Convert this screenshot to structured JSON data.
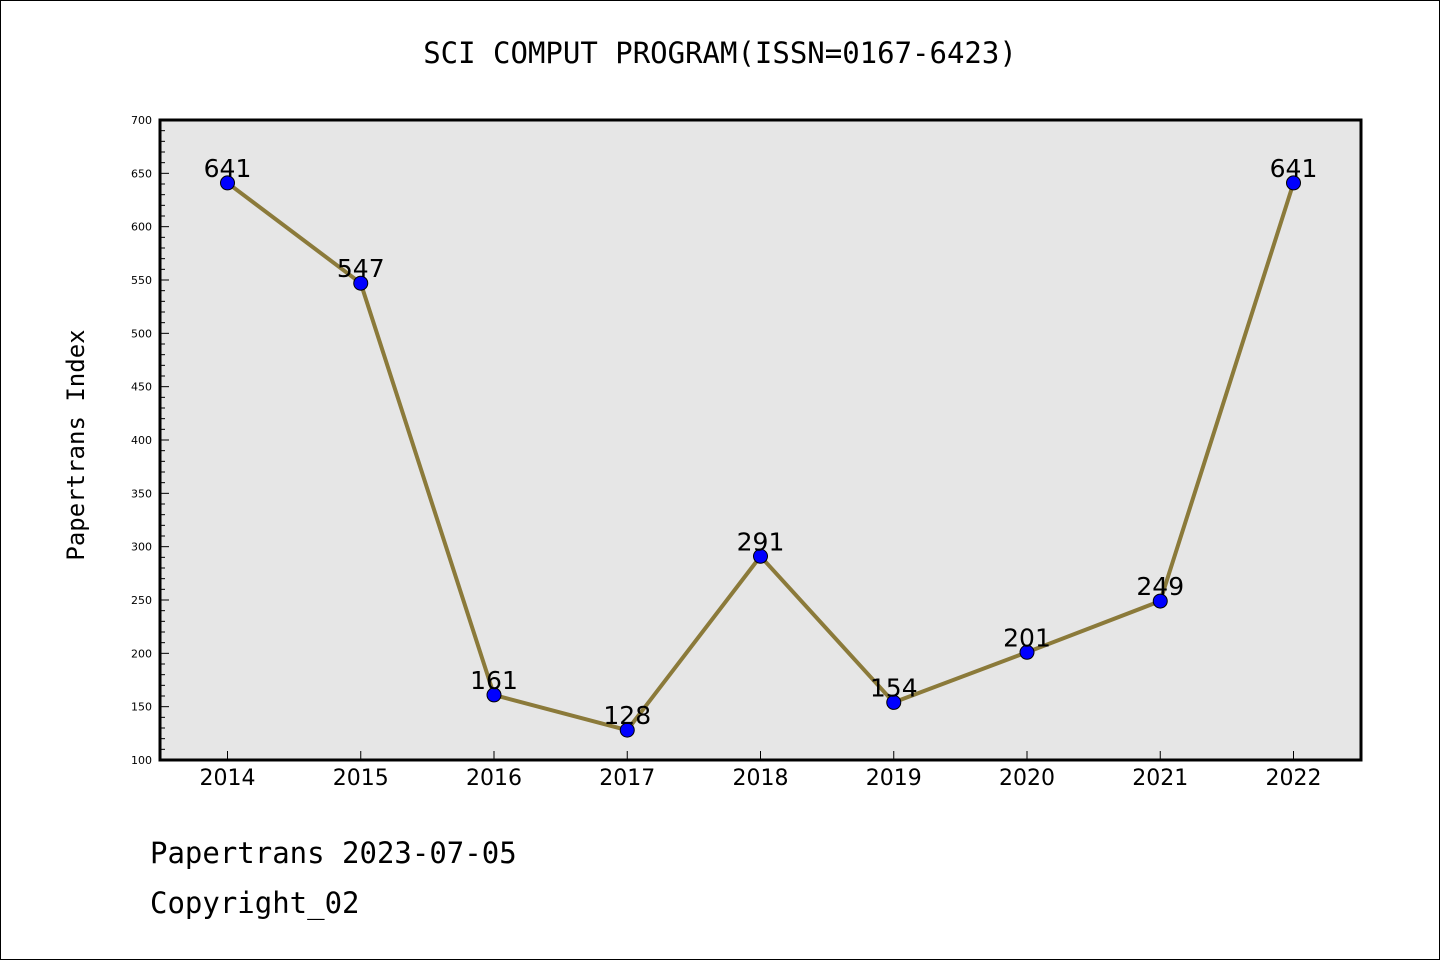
{
  "header": {
    "title": "SCI COMPUT PROGRAM(ISSN=0167-6423)"
  },
  "footer": {
    "date_line": "Papertrans 2023-07-05",
    "copyright_line": "Copyright_02"
  },
  "colors": {
    "plot_background": "#e6e6e6",
    "line": "#8b7a3a",
    "marker": "#0000ff"
  },
  "chart_data": {
    "type": "line",
    "title": "SCI COMPUT PROGRAM(ISSN=0167-6423)",
    "xlabel": "",
    "ylabel": "Papertrans Index",
    "categories": [
      "2014",
      "2015",
      "2016",
      "2017",
      "2018",
      "2019",
      "2020",
      "2021",
      "2022"
    ],
    "series": [
      {
        "values": [
          641,
          547,
          161,
          128,
          291,
          154,
          201,
          249,
          641
        ]
      }
    ],
    "data_labels": [
      "641",
      "547",
      "161",
      "128",
      "291",
      "154",
      "201",
      "249",
      "641"
    ],
    "ylim": [
      100,
      700
    ],
    "yticks": [
      100,
      150,
      200,
      250,
      300,
      350,
      400,
      450,
      500,
      550,
      600,
      650,
      700
    ],
    "ytick_labels": [
      "100",
      "150",
      "200",
      "250",
      "300",
      "350",
      "400",
      "450",
      "500",
      "550",
      "600",
      "650",
      "700"
    ],
    "grid": false,
    "legend": "none"
  }
}
